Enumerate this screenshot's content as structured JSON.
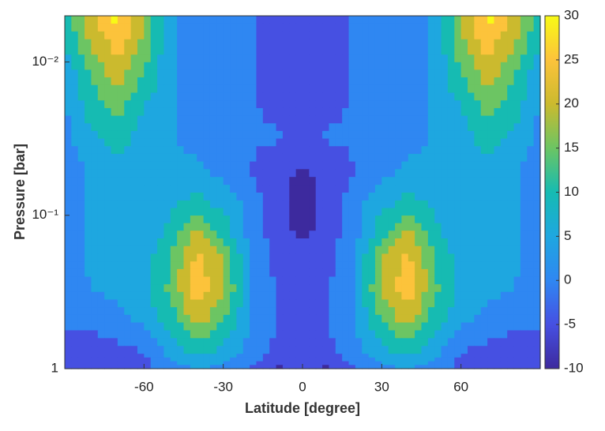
{
  "chart_data": {
    "type": "contourf",
    "xlabel": "Latitude [degree]",
    "ylabel": "Pressure [bar]",
    "xlim": [
      -90,
      90
    ],
    "xticks": [
      -60,
      -30,
      0,
      30,
      60
    ],
    "ylim": [
      0.005,
      1
    ],
    "ylog": true,
    "yreverse": true,
    "yticks": [
      {
        "value": 0.01,
        "label": "10⁻²"
      },
      {
        "value": 0.1,
        "label": "10⁻¹"
      },
      1
    ],
    "x": [
      -90,
      -80,
      -70,
      -60,
      -50,
      -40,
      -30,
      -20,
      -10,
      0,
      10,
      20,
      30,
      40,
      50,
      60,
      70,
      80,
      90
    ],
    "y": [
      0.005,
      0.008,
      0.0126,
      0.02,
      0.0316,
      0.05,
      0.08,
      0.126,
      0.2,
      0.316,
      0.5,
      0.8,
      1
    ],
    "z": [
      [
        12,
        24,
        32,
        20,
        6,
        3,
        2,
        0.5,
        -2,
        -3,
        -2,
        0.5,
        2,
        3,
        6,
        20,
        32,
        24,
        12
      ],
      [
        10,
        20,
        27,
        18,
        6,
        3,
        2,
        0.5,
        -2,
        -3,
        -2,
        0.5,
        2,
        3,
        6,
        18,
        27,
        20,
        10
      ],
      [
        6,
        15,
        22,
        14,
        6,
        3,
        2,
        0.3,
        -1.5,
        -3,
        -1.5,
        0.3,
        2,
        3,
        6,
        14,
        22,
        15,
        6
      ],
      [
        4.5,
        12,
        17,
        10,
        6,
        3,
        2,
        0.5,
        -1,
        -2.5,
        -1,
        0.5,
        2,
        3,
        6,
        10,
        17,
        12,
        4.5
      ],
      [
        3,
        9,
        12,
        8,
        5.2,
        3,
        2,
        1,
        0.5,
        -1,
        0.5,
        1,
        2,
        3,
        5.2,
        8,
        12,
        9,
        3
      ],
      [
        3,
        5.5,
        8,
        7,
        6,
        6.5,
        3,
        0.2,
        -4,
        -5,
        -4,
        0.2,
        3,
        6.5,
        6,
        7,
        8,
        5.5,
        3
      ],
      [
        4,
        5.5,
        6.5,
        7,
        9,
        11,
        8,
        3,
        -3,
        -8,
        -3,
        3,
        8,
        11,
        9,
        7,
        6.5,
        5.5,
        4
      ],
      [
        4,
        5.5,
        6,
        7,
        11,
        20.5,
        13,
        3,
        -3,
        -6,
        -3,
        3,
        13,
        20.5,
        11,
        7,
        6,
        5.5,
        4
      ],
      [
        4,
        5.5,
        6,
        8,
        15.5,
        27,
        20,
        5,
        -1,
        -3,
        -1,
        5,
        20,
        27,
        15.5,
        8,
        6,
        5.5,
        4
      ],
      [
        3,
        5,
        6,
        9,
        16,
        28,
        21,
        5.5,
        -0.5,
        -3,
        -0.5,
        5.5,
        21,
        28,
        16,
        9,
        6,
        5,
        3
      ],
      [
        0.5,
        1,
        3,
        6,
        12,
        22,
        15,
        5,
        0,
        -2,
        0,
        5,
        15,
        22,
        12,
        6,
        3,
        1,
        0.5
      ],
      [
        -2,
        -3,
        -2,
        -0.5,
        7,
        11,
        8,
        3,
        -1,
        -2,
        -1,
        3,
        8,
        11,
        7,
        -0.5,
        -2,
        -3,
        -2
      ],
      [
        -3,
        -4,
        -3,
        -2,
        3,
        5,
        4,
        0,
        -6,
        -3,
        -6,
        0,
        4,
        5,
        3,
        -2,
        -3,
        -4,
        -3
      ]
    ],
    "levels": [
      -10,
      -5,
      0,
      5,
      10,
      15,
      20,
      25,
      30
    ],
    "level_colors": [
      "#3d2a9e",
      "#4650e2",
      "#2f87f2",
      "#1ea7e0",
      "#16bbb2",
      "#6cc563",
      "#cbba2e",
      "#fcc33b",
      "#f8fa16"
    ],
    "colorbar": {
      "lim": [
        -10,
        30
      ],
      "ticks": [
        -10,
        -5,
        0,
        5,
        10,
        15,
        20,
        25,
        30
      ]
    }
  }
}
